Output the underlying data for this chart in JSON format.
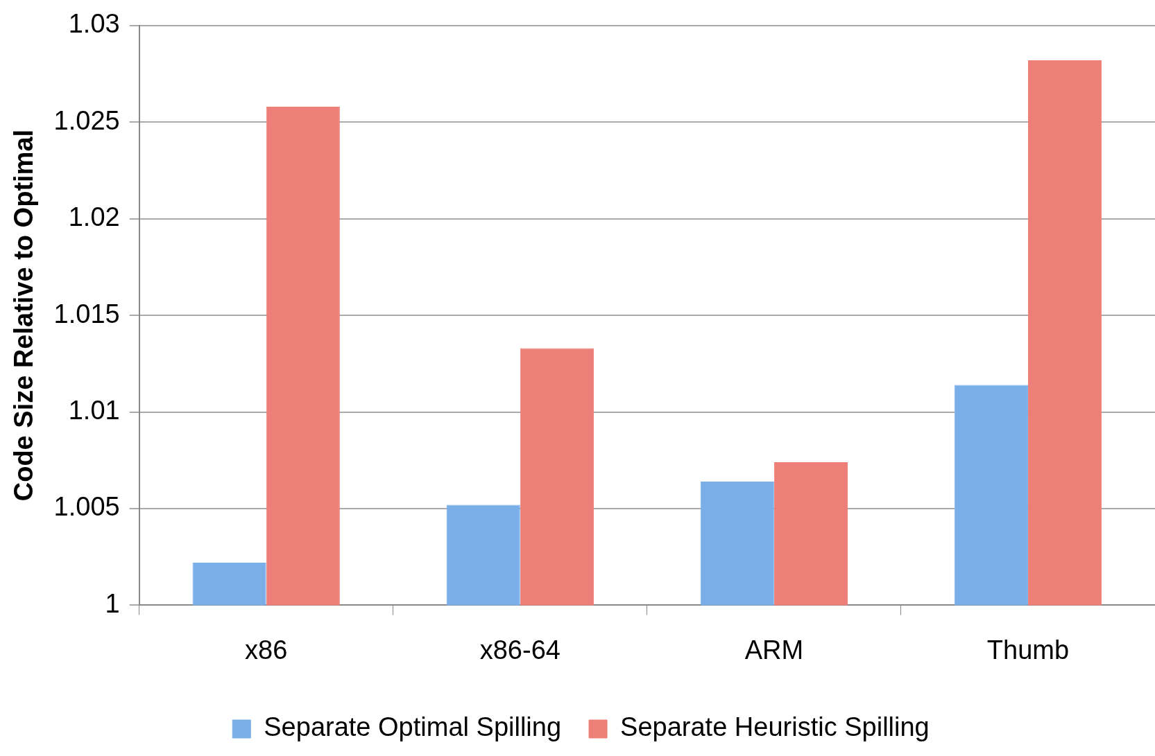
{
  "chart_data": {
    "type": "bar",
    "ylabel": "Code Size Relative to Optimal",
    "categories": [
      "x86",
      "x86-64",
      "ARM",
      "Thumb"
    ],
    "series": [
      {
        "name": "Separate Optimal Spilling",
        "color": "#7aaee8",
        "values": [
          1.0022,
          1.0052,
          1.0064,
          1.0114
        ]
      },
      {
        "name": "Separate Heuristic Spilling",
        "color": "#ee7f78",
        "values": [
          1.0258,
          1.0133,
          1.0074,
          1.0282
        ]
      }
    ],
    "ylim": [
      1,
      1.03
    ],
    "yticks": [
      1,
      1.005,
      1.01,
      1.015,
      1.02,
      1.025,
      1.03
    ],
    "grid": "y",
    "legend": "bottom"
  }
}
